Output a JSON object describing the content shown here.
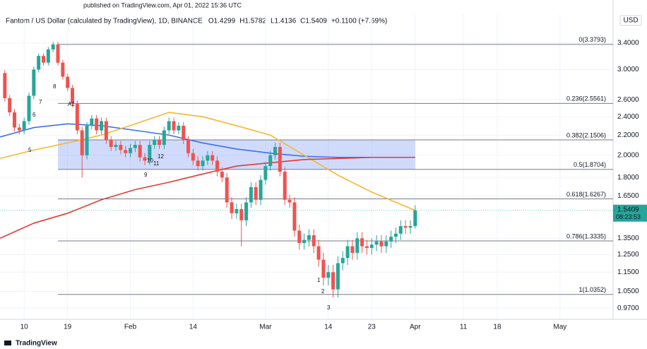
{
  "published": "published on TradingView.com, Apr 01, 2022 15:36 UTC",
  "brand": "TradingView",
  "currency": "USD",
  "chart_data": {
    "type": "candlestick",
    "title": "Fantom / US Dollar (calculated by TradingView), 1D, BINANCE",
    "legend": [
      "O1.4299",
      "H1.5782",
      "L1.4136",
      "C1.5409",
      "+0.1100 (+7.69%)"
    ],
    "price_label": "1.5409",
    "countdown": "08:23:53",
    "log_scale": true,
    "grid": true,
    "up_color": "#26a69a",
    "down_color": "#ef5350",
    "xlim": [
      "2022-01-05",
      "2022-05-12"
    ],
    "xticks": [
      {
        "value": "2022-01-10",
        "label": "10"
      },
      {
        "value": "2022-01-19",
        "label": "19"
      },
      {
        "value": "2022-02-01",
        "label": "Feb"
      },
      {
        "value": "2022-02-14",
        "label": "14"
      },
      {
        "value": "2022-03-01",
        "label": "Mar"
      },
      {
        "value": "2022-03-14",
        "label": "14"
      },
      {
        "value": "2022-03-23",
        "label": "23"
      },
      {
        "value": "2022-04-01",
        "label": "Apr"
      },
      {
        "value": "2022-04-11",
        "label": "11"
      },
      {
        "value": "2022-04-18",
        "label": "18"
      },
      {
        "value": "2022-05-01",
        "label": "May"
      }
    ],
    "ylim": [
      0.92,
      3.9
    ],
    "yticks": [
      {
        "value": 3.4,
        "label": "3.4000"
      },
      {
        "value": 3,
        "label": "3.0000"
      },
      {
        "value": 2.6,
        "label": "2.6000"
      },
      {
        "value": 2.4,
        "label": "2.4000"
      },
      {
        "value": 2.2,
        "label": "2.2000"
      },
      {
        "value": 2,
        "label": "2.0000"
      },
      {
        "value": 1.8,
        "label": "1.8000"
      },
      {
        "value": 1.65,
        "label": "1.6500"
      },
      {
        "value": 1.35,
        "label": "1.3500"
      },
      {
        "value": 1.25,
        "label": "1.2500"
      },
      {
        "value": 1.15,
        "label": "1.1500"
      },
      {
        "value": 1.05,
        "label": "1.0500"
      },
      {
        "value": 0.97,
        "label": "0.9700"
      }
    ],
    "x": [
      "2022-01-06",
      "2022-01-07",
      "2022-01-08",
      "2022-01-09",
      "2022-01-10",
      "2022-01-11",
      "2022-01-12",
      "2022-01-13",
      "2022-01-14",
      "2022-01-15",
      "2022-01-16",
      "2022-01-17",
      "2022-01-18",
      "2022-01-19",
      "2022-01-20",
      "2022-01-21",
      "2022-01-22",
      "2022-01-23",
      "2022-01-24",
      "2022-01-25",
      "2022-01-26",
      "2022-01-27",
      "2022-01-28",
      "2022-01-29",
      "2022-01-30",
      "2022-01-31",
      "2022-02-01",
      "2022-02-02",
      "2022-02-03",
      "2022-02-04",
      "2022-02-05",
      "2022-02-06",
      "2022-02-07",
      "2022-02-08",
      "2022-02-09",
      "2022-02-10",
      "2022-02-11",
      "2022-02-12",
      "2022-02-13",
      "2022-02-14",
      "2022-02-15",
      "2022-02-16",
      "2022-02-17",
      "2022-02-18",
      "2022-02-19",
      "2022-02-20",
      "2022-02-21",
      "2022-02-22",
      "2022-02-23",
      "2022-02-24",
      "2022-02-25",
      "2022-02-26",
      "2022-02-27",
      "2022-02-28",
      "2022-03-01",
      "2022-03-02",
      "2022-03-03",
      "2022-03-04",
      "2022-03-05",
      "2022-03-06",
      "2022-03-07",
      "2022-03-08",
      "2022-03-09",
      "2022-03-10",
      "2022-03-11",
      "2022-03-12",
      "2022-03-13",
      "2022-03-14",
      "2022-03-15",
      "2022-03-16",
      "2022-03-17",
      "2022-03-18",
      "2022-03-19",
      "2022-03-20",
      "2022-03-21",
      "2022-03-22",
      "2022-03-23",
      "2022-03-24",
      "2022-03-25",
      "2022-03-26",
      "2022-03-27",
      "2022-03-28",
      "2022-03-29",
      "2022-03-30",
      "2022-03-31",
      "2022-04-01"
    ],
    "open": [
      2.95,
      2.62,
      2.45,
      2.28,
      2.25,
      2.35,
      2.65,
      3.0,
      3.2,
      3.1,
      3.3,
      3.38,
      3.1,
      2.9,
      2.75,
      2.55,
      2.25,
      2.0,
      2.3,
      2.38,
      2.25,
      2.35,
      2.15,
      2.08,
      2.1,
      2.05,
      2.02,
      2.07,
      2.1,
      1.98,
      1.95,
      2.1,
      2.15,
      2.1,
      2.25,
      2.35,
      2.25,
      2.3,
      2.15,
      2.02,
      1.95,
      1.9,
      1.95,
      2.0,
      1.95,
      1.85,
      1.8,
      1.6,
      1.52,
      1.55,
      1.47,
      1.6,
      1.72,
      1.62,
      1.78,
      1.9,
      2.0,
      2.08,
      1.85,
      1.62,
      1.6,
      1.4,
      1.32,
      1.34,
      1.37,
      1.3,
      1.22,
      1.12,
      1.15,
      1.06,
      1.2,
      1.23,
      1.3,
      1.26,
      1.35,
      1.3,
      1.29,
      1.31,
      1.33,
      1.3,
      1.33,
      1.36,
      1.38,
      1.43,
      1.42,
      1.4299
    ],
    "high": [
      2.99,
      2.66,
      2.49,
      2.32,
      2.39,
      2.69,
      3.04,
      3.24,
      3.24,
      3.34,
      3.42,
      3.42,
      3.14,
      2.94,
      2.79,
      2.59,
      2.29,
      2.34,
      2.42,
      2.42,
      2.39,
      2.39,
      2.19,
      2.14,
      2.14,
      2.09,
      2.11,
      2.14,
      2.14,
      2.02,
      2.14,
      2.19,
      2.19,
      2.29,
      2.39,
      2.39,
      2.34,
      2.34,
      2.19,
      2.06,
      1.99,
      1.99,
      2.04,
      2.04,
      1.99,
      1.89,
      1.84,
      1.64,
      1.59,
      1.59,
      1.64,
      1.76,
      1.76,
      1.82,
      1.94,
      2.04,
      2.12,
      2.12,
      1.89,
      1.66,
      1.64,
      1.44,
      1.38,
      1.41,
      1.41,
      1.34,
      1.26,
      1.19,
      1.19,
      1.24,
      1.27,
      1.34,
      1.34,
      1.39,
      1.39,
      1.34,
      1.35,
      1.37,
      1.37,
      1.37,
      1.4,
      1.42,
      1.47,
      1.47,
      1.47,
      1.5782
    ],
    "low": [
      2.58,
      2.41,
      2.24,
      2.21,
      2.21,
      2.31,
      2.61,
      2.96,
      3.06,
      3.06,
      3.26,
      3.06,
      2.86,
      2.71,
      2.51,
      2.21,
      1.8,
      1.96,
      2.26,
      2.21,
      2.21,
      2.11,
      2.04,
      2.04,
      2.01,
      1.98,
      1.98,
      2.03,
      1.94,
      1.91,
      1.91,
      2.06,
      2.06,
      2.06,
      2.21,
      2.21,
      2.21,
      2.11,
      1.98,
      1.91,
      1.86,
      1.86,
      1.91,
      1.91,
      1.81,
      1.76,
      1.56,
      1.48,
      1.48,
      1.3,
      1.43,
      1.56,
      1.58,
      1.58,
      1.74,
      1.86,
      1.96,
      1.81,
      1.58,
      1.56,
      1.36,
      1.28,
      1.28,
      1.3,
      1.26,
      1.18,
      1.08,
      1.08,
      1.02,
      1.02,
      1.16,
      1.19,
      1.22,
      1.22,
      1.26,
      1.25,
      1.25,
      1.27,
      1.26,
      1.26,
      1.29,
      1.32,
      1.34,
      1.38,
      1.38,
      1.4136
    ],
    "close": [
      2.62,
      2.45,
      2.28,
      2.25,
      2.35,
      2.65,
      3.0,
      3.2,
      3.1,
      3.3,
      3.38,
      3.1,
      2.9,
      2.75,
      2.55,
      2.25,
      2.0,
      2.3,
      2.38,
      2.25,
      2.35,
      2.15,
      2.08,
      2.1,
      2.05,
      2.02,
      2.07,
      2.1,
      1.98,
      1.95,
      2.1,
      2.15,
      2.1,
      2.25,
      2.35,
      2.25,
      2.3,
      2.15,
      2.02,
      1.95,
      1.9,
      1.95,
      2.0,
      1.95,
      1.85,
      1.8,
      1.6,
      1.52,
      1.55,
      1.47,
      1.6,
      1.72,
      1.62,
      1.78,
      1.9,
      2.0,
      2.08,
      1.85,
      1.62,
      1.6,
      1.4,
      1.32,
      1.34,
      1.37,
      1.3,
      1.22,
      1.12,
      1.15,
      1.06,
      1.2,
      1.23,
      1.3,
      1.26,
      1.35,
      1.3,
      1.29,
      1.31,
      1.33,
      1.3,
      1.33,
      1.36,
      1.38,
      1.43,
      1.42,
      1.43,
      1.5409
    ],
    "lines": [
      {
        "color": "#3d6ff0",
        "x": [
          "2022-01-05",
          "2022-01-12",
          "2022-01-19",
          "2022-01-26",
          "2022-02-02",
          "2022-02-09",
          "2022-02-16",
          "2022-02-23",
          "2022-03-02",
          "2022-03-09",
          "2022-03-16",
          "2022-03-23",
          "2022-04-01"
        ],
        "values": [
          2.18,
          2.28,
          2.32,
          2.3,
          2.25,
          2.2,
          2.12,
          2.06,
          2.02,
          1.99,
          1.98,
          1.98,
          1.98
        ]
      },
      {
        "color": "#f5b731",
        "x": [
          "2022-01-05",
          "2022-01-12",
          "2022-01-19",
          "2022-01-26",
          "2022-02-02",
          "2022-02-09",
          "2022-02-16",
          "2022-02-23",
          "2022-03-02",
          "2022-03-09",
          "2022-03-16",
          "2022-03-23",
          "2022-04-01"
        ],
        "values": [
          1.97,
          2.05,
          2.12,
          2.2,
          2.32,
          2.45,
          2.4,
          2.3,
          2.2,
          2.0,
          1.82,
          1.68,
          1.54
        ]
      },
      {
        "color": "#e53935",
        "x": [
          "2022-01-05",
          "2022-01-12",
          "2022-01-19",
          "2022-01-26",
          "2022-02-02",
          "2022-02-09",
          "2022-02-16",
          "2022-02-23",
          "2022-03-02",
          "2022-03-09",
          "2022-03-16",
          "2022-03-23",
          "2022-04-01"
        ],
        "values": [
          1.35,
          1.45,
          1.52,
          1.62,
          1.7,
          1.76,
          1.83,
          1.9,
          1.93,
          1.96,
          1.97,
          1.98,
          1.98
        ]
      }
    ],
    "fib_start": "2022-01-17",
    "fib_zone_end": "2022-04-01",
    "fib_levels": [
      {
        "value": 3.3793,
        "label": "0(3.3793)"
      },
      {
        "value": 2.5561,
        "label": "0.236(2.5561)"
      },
      {
        "value": 2.1506,
        "label": "0.382(2.1506)"
      },
      {
        "value": 1.8704,
        "label": "0.5(1.8704)"
      },
      {
        "value": 1.6267,
        "label": "0.618(1.6267)"
      },
      {
        "value": 1.3335,
        "label": "0.786(1.3335)"
      },
      {
        "value": 1.0352,
        "label": "1(1.0352)"
      }
    ],
    "annotations": [
      "5",
      "6",
      "7",
      "8",
      "A1",
      "9",
      "10",
      "11",
      "12",
      "1",
      "2",
      "3"
    ]
  }
}
